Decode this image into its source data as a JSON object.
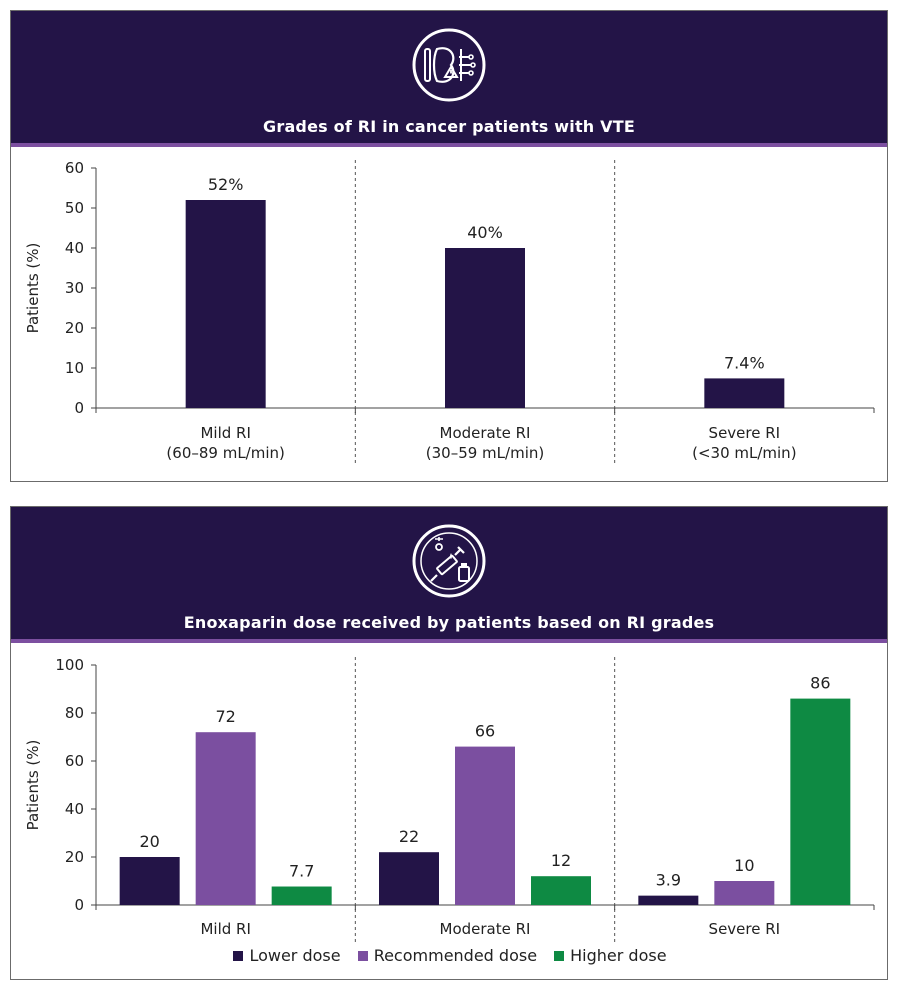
{
  "panels": [
    {
      "header_title": "Grades of RI in cancer patients with VTE",
      "icon": "kidney-alert-icon"
    },
    {
      "header_title": "Enoxaparin dose received by patients based on RI grades",
      "icon": "syringe-vial-icon"
    }
  ],
  "colors": {
    "header_bg": "#231447",
    "header_rule": "#7c4fa0",
    "lower_dose": "#231447",
    "recommended_dose": "#7b4fa0",
    "higher_dose": "#0e8a43"
  },
  "chart_data": [
    {
      "type": "bar",
      "title": "Grades of RI in cancer patients with VTE",
      "categories": [
        [
          "Mild RI",
          "(60–89 mL/min)"
        ],
        [
          "Moderate RI",
          "(30–59 mL/min)"
        ],
        [
          "Severe RI",
          "(<30 mL/min)"
        ]
      ],
      "values": [
        52,
        40,
        7.4
      ],
      "value_labels": [
        "52%",
        "40%",
        "7.4%"
      ],
      "ylabel": "Patients (%)",
      "ylim": [
        0,
        60
      ],
      "yticks": [
        0,
        10,
        20,
        30,
        40,
        50,
        60
      ],
      "grid": false,
      "category_separators": "dashed"
    },
    {
      "type": "bar",
      "title": "Enoxaparin dose received by patients based on RI grades",
      "categories": [
        "Mild RI",
        "Moderate RI",
        "Severe RI"
      ],
      "series": [
        {
          "name": "Lower dose",
          "values": [
            20,
            22,
            3.9
          ],
          "value_labels": [
            "20",
            "22",
            "3.9"
          ]
        },
        {
          "name": "Recommended dose",
          "values": [
            72,
            66,
            10
          ],
          "value_labels": [
            "72",
            "66",
            "10"
          ]
        },
        {
          "name": "Higher dose",
          "values": [
            7.7,
            12,
            86
          ],
          "value_labels": [
            "7.7",
            "12",
            "86"
          ]
        }
      ],
      "ylabel": "Patients (%)",
      "ylim": [
        0,
        100
      ],
      "yticks": [
        0,
        20,
        40,
        60,
        80,
        100
      ],
      "grid": false,
      "legend": "bottom",
      "category_separators": "dashed"
    }
  ]
}
